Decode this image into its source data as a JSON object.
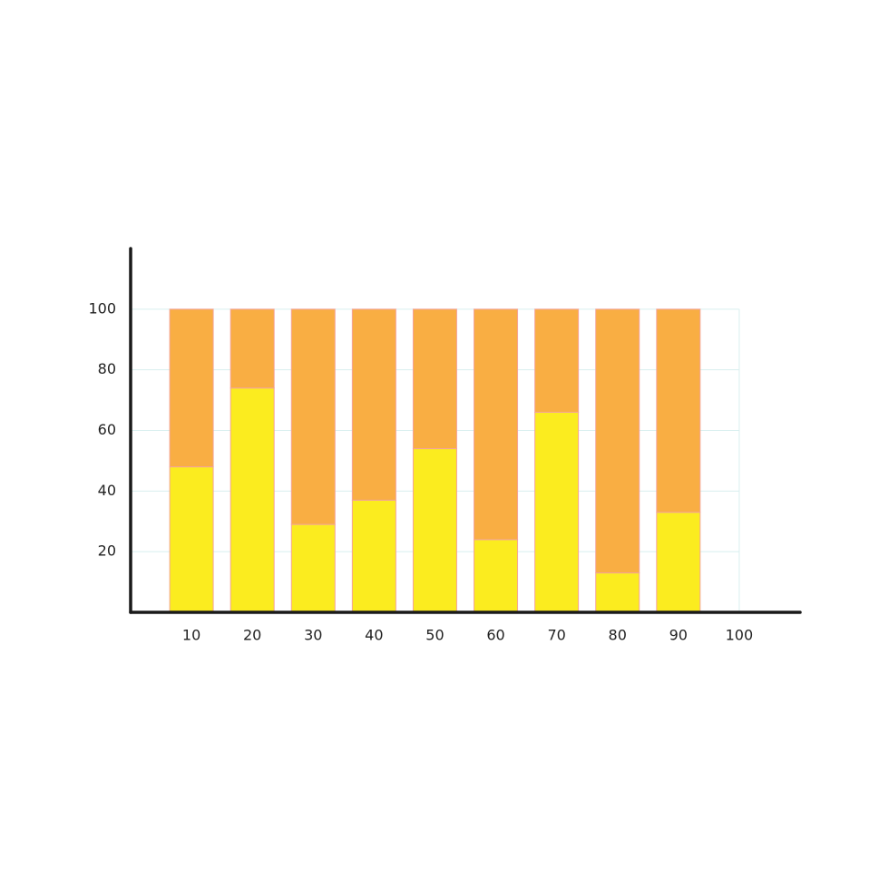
{
  "chart_data": {
    "type": "bar",
    "stacked": true,
    "x": [
      10,
      20,
      30,
      40,
      50,
      60,
      70,
      80,
      90
    ],
    "series": [
      {
        "color": "#fbec1f",
        "values": [
          48,
          74,
          29,
          37,
          54,
          24,
          66,
          13,
          33
        ]
      },
      {
        "color": "#f9ae43",
        "values": [
          52,
          26,
          71,
          63,
          46,
          76,
          34,
          87,
          67
        ]
      }
    ],
    "xlim": [
      0,
      110
    ],
    "xticks": [
      10,
      20,
      30,
      40,
      50,
      60,
      70,
      80,
      90,
      100
    ],
    "ylim": [
      0,
      120
    ],
    "yticks": [
      20,
      40,
      60,
      80,
      100
    ],
    "grid": true
  }
}
